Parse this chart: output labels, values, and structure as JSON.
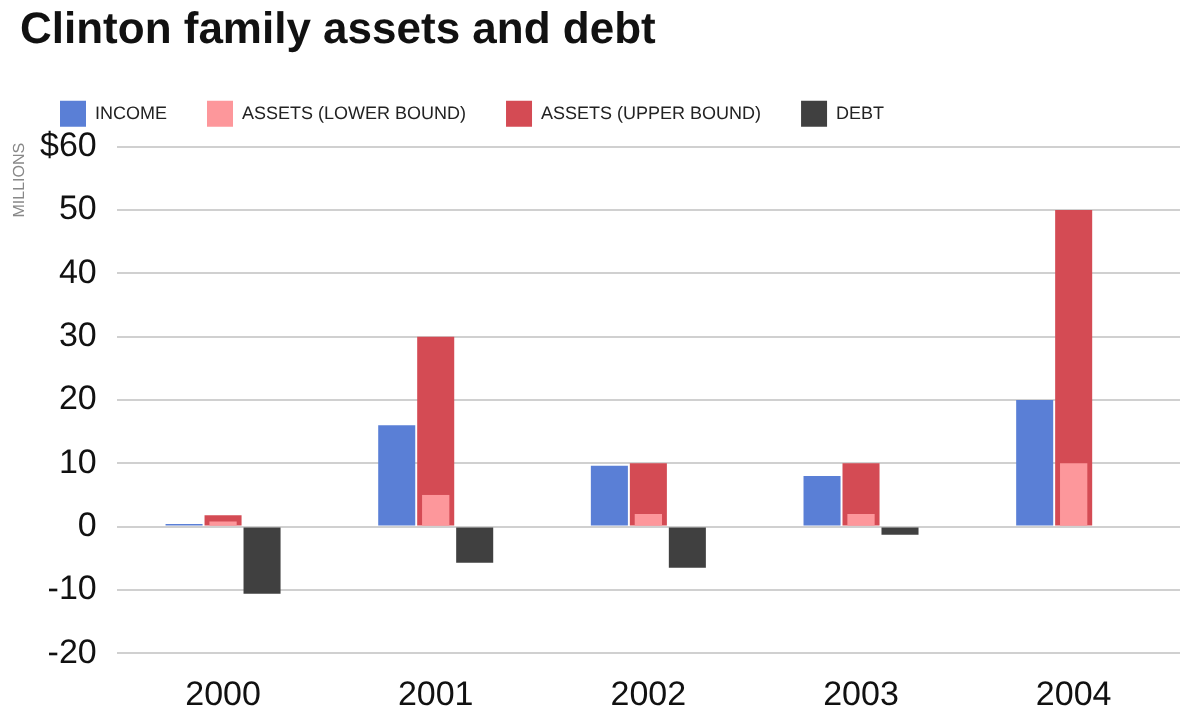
{
  "chart_data": {
    "type": "bar",
    "title": "Clinton family assets and debt",
    "ylabel": "MILLIONS",
    "categories": [
      "2000",
      "2001",
      "2002",
      "2003",
      "2004"
    ],
    "series": [
      {
        "name": "INCOME",
        "color": "#5a7fd6",
        "values": [
          0.4,
          16,
          9.6,
          8,
          20
        ]
      },
      {
        "name": "ASSETS (LOWER BOUND)",
        "color": "#fd979b",
        "values": [
          0.8,
          5,
          2,
          2,
          10
        ]
      },
      {
        "name": "ASSETS (UPPER BOUND)",
        "color": "#d44b54",
        "values": [
          1.8,
          30,
          10,
          10,
          50
        ]
      },
      {
        "name": "DEBT",
        "color": "#404040",
        "values": [
          -10.6,
          -5.7,
          -6.5,
          -1.3,
          null
        ]
      }
    ],
    "ylim": [
      -20,
      60
    ],
    "yticks": [
      -20,
      -10,
      0,
      10,
      20,
      30,
      40,
      50,
      {
        "value": 60,
        "label": "$60"
      }
    ],
    "grid": "y",
    "legend": "top left"
  }
}
